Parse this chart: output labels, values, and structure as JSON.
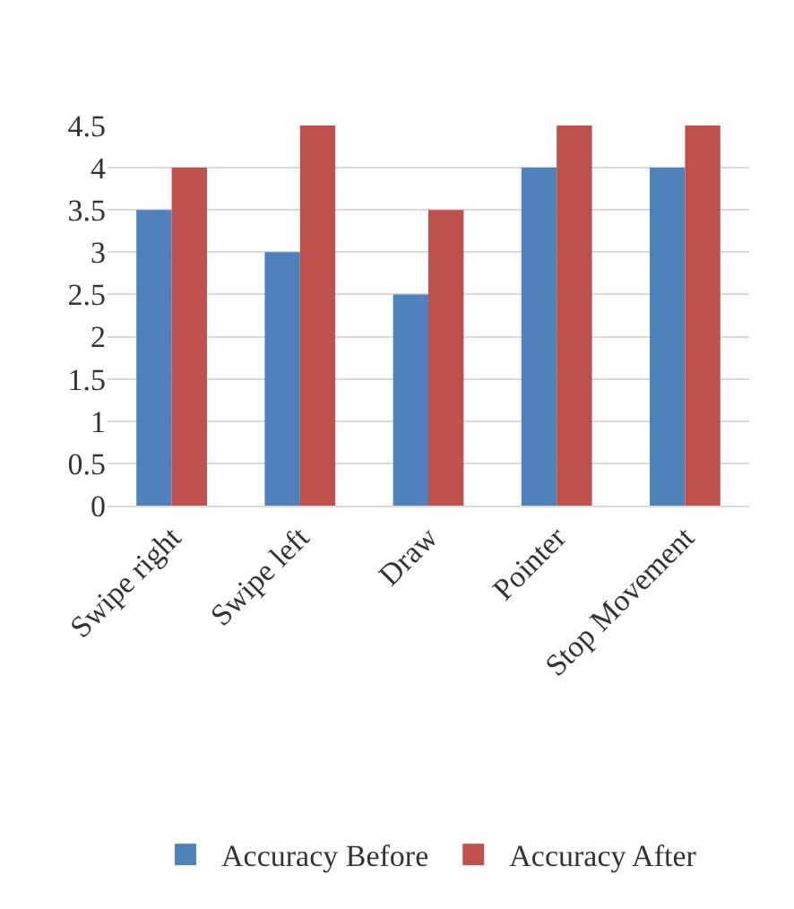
{
  "chart_data": {
    "type": "bar",
    "categories": [
      "Swipe right",
      "Swipe left",
      "Draw",
      "Pointer",
      "Stop Movement"
    ],
    "series": [
      {
        "name": "Accuracy Before",
        "color": "#4f81bd",
        "values": [
          3.5,
          3,
          2.5,
          4,
          4
        ]
      },
      {
        "name": "Accuracy After",
        "color": "#c0504d",
        "values": [
          4,
          4.5,
          3.5,
          4.5,
          4.5
        ]
      }
    ],
    "ylim": [
      0,
      4.5
    ],
    "yticks": [
      0,
      0.5,
      1,
      1.5,
      2,
      2.5,
      3,
      3.5,
      4,
      4.5
    ],
    "grid": "y",
    "legend": "bottom"
  }
}
